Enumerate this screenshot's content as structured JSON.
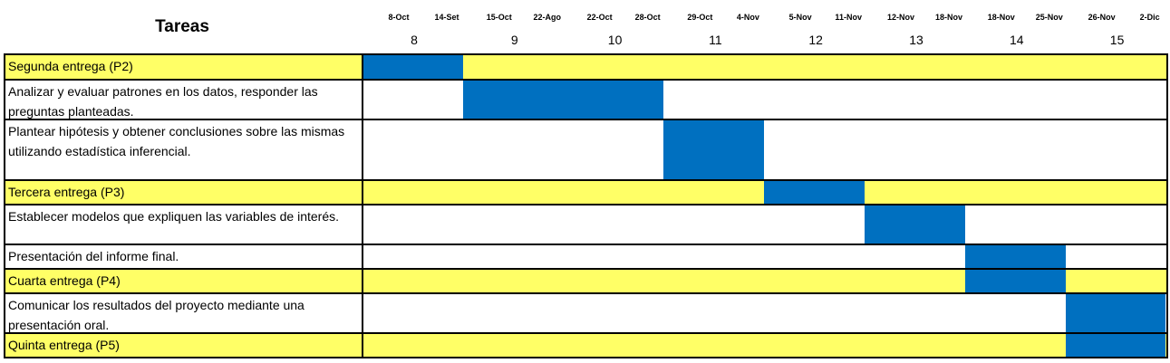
{
  "chart_data": {
    "type": "gantt",
    "task_header": "Tareas",
    "dates": [
      "8-Oct",
      "14-Set",
      "15-Oct",
      "22-Ago",
      "22-Oct",
      "28-Oct",
      "29-Oct",
      "4-Nov",
      "5-Nov",
      "11-Nov",
      "12-Nov",
      "18-Nov",
      "18-Nov",
      "25-Nov",
      "26-Nov",
      "2-Dic"
    ],
    "weeks": [
      "8",
      "9",
      "10",
      "11",
      "12",
      "13",
      "14",
      "15"
    ],
    "colors": {
      "milestone_row": "#ffff66",
      "regular_row": "#ffffff",
      "bar": "#0070c0",
      "grid": "#000000"
    },
    "tasks": [
      {
        "name": "Segunda entrega (P2)",
        "type": "milestone",
        "start_week": 8,
        "end_week": 8
      },
      {
        "name": "Analizar y evaluar patrones en los datos, responder las preguntas planteadas.",
        "type": "task",
        "start_week": 9,
        "end_week": 10
      },
      {
        "name": "Plantear hipótesis y obtener conclusiones sobre las mismas utilizando estadística inferencial.",
        "type": "task",
        "start_week": 11,
        "end_week": 11
      },
      {
        "name": "Tercera entrega (P3)",
        "type": "milestone",
        "start_week": 12,
        "end_week": 12
      },
      {
        "name": "Establecer modelos que expliquen las variables de interés.",
        "type": "task",
        "start_week": 13,
        "end_week": 13
      },
      {
        "name": "Presentación del informe final.",
        "type": "task",
        "start_week": 14,
        "end_week": 14
      },
      {
        "name": "Cuarta entrega (P4)",
        "type": "milestone",
        "start_week": 14,
        "end_week": 14
      },
      {
        "name": "Comunicar los resultados del proyecto mediante una presentación oral.",
        "type": "task",
        "start_week": 15,
        "end_week": 15
      },
      {
        "name": "Quinta entrega (P5)",
        "type": "milestone",
        "start_week": 15,
        "end_week": 15
      }
    ]
  }
}
